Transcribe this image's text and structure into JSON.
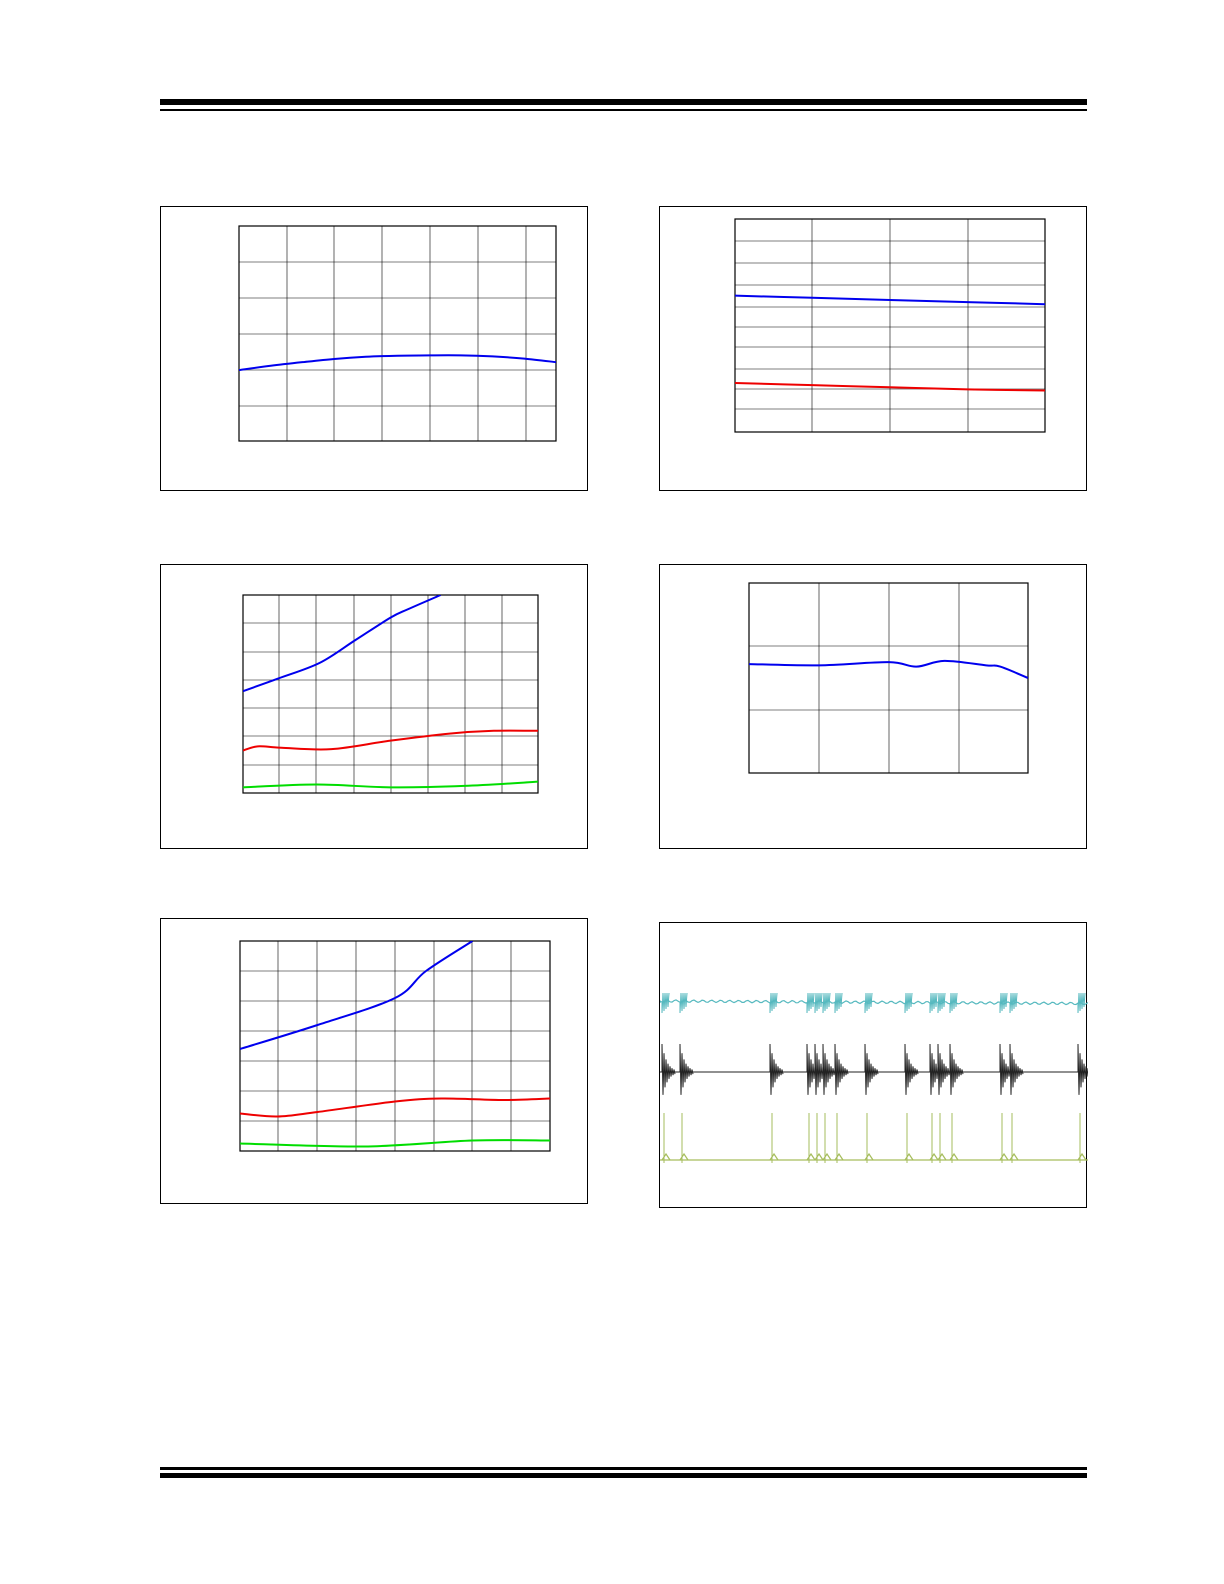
{
  "page": {
    "colors": {
      "blue": "#0000ee",
      "red": "#ee0000",
      "green": "#00dd00",
      "cyan": "#56b9bf",
      "black": "#222222",
      "olive": "#a6bd5c",
      "grid": "#000000"
    }
  },
  "chart_data": [
    {
      "type": "line",
      "title": "",
      "xlabel": "",
      "ylabel": "",
      "xlim": [
        0,
        100
      ],
      "ylim": [
        0,
        6
      ],
      "grid": true,
      "series": [
        {
          "color": "#0000ee",
          "x": [
            0,
            10,
            20,
            30,
            40,
            50,
            60,
            70,
            80,
            90,
            100
          ],
          "y": [
            1.98,
            2.1,
            2.2,
            2.29,
            2.35,
            2.38,
            2.39,
            2.39,
            2.36,
            2.3,
            2.2
          ]
        }
      ]
    },
    {
      "type": "line",
      "title": "",
      "xlabel": "",
      "ylabel": "",
      "xlim": [
        0,
        100
      ],
      "ylim": [
        0,
        10
      ],
      "grid": true,
      "series": [
        {
          "color": "#0000ee",
          "x": [
            0,
            25,
            50,
            75,
            100
          ],
          "y": [
            6.4,
            6.3,
            6.2,
            6.1,
            6.0
          ]
        },
        {
          "color": "#ee0000",
          "x": [
            0,
            25,
            50,
            75,
            100
          ],
          "y": [
            2.3,
            2.2,
            2.1,
            2.0,
            1.95
          ]
        }
      ]
    },
    {
      "type": "line",
      "title": "",
      "xlabel": "",
      "ylabel": "",
      "xlim": [
        0,
        100
      ],
      "ylim": [
        0,
        7
      ],
      "grid": true,
      "series": [
        {
          "color": "#0000ee",
          "x": [
            0,
            12,
            26,
            38,
            50,
            56,
            67
          ],
          "y": [
            3.6,
            4.05,
            4.6,
            5.4,
            6.2,
            6.5,
            7.0
          ]
        },
        {
          "color": "#ee0000",
          "x": [
            0,
            5,
            13,
            30,
            50,
            70,
            85,
            100
          ],
          "y": [
            1.5,
            1.65,
            1.6,
            1.55,
            1.85,
            2.1,
            2.2,
            2.2
          ]
        },
        {
          "color": "#00dd00",
          "x": [
            0,
            25,
            50,
            75,
            100
          ],
          "y": [
            0.2,
            0.3,
            0.2,
            0.25,
            0.4
          ]
        }
      ]
    },
    {
      "type": "line",
      "title": "",
      "xlabel": "",
      "ylabel": "",
      "xlim": [
        0,
        100
      ],
      "ylim": [
        0,
        3
      ],
      "grid": true,
      "series": [
        {
          "color": "#0000ee",
          "x": [
            0,
            25,
            50,
            60,
            70,
            85,
            90,
            100
          ],
          "y": [
            1.72,
            1.7,
            1.75,
            1.68,
            1.77,
            1.7,
            1.68,
            1.5
          ]
        }
      ]
    },
    {
      "type": "line",
      "title": "",
      "xlabel": "",
      "ylabel": "",
      "xlim": [
        0,
        100
      ],
      "ylim": [
        0,
        7
      ],
      "grid": true,
      "series": [
        {
          "color": "#0000ee",
          "x": [
            0,
            25,
            50,
            60,
            75
          ],
          "y": [
            3.4,
            4.2,
            5.1,
            6.0,
            7.0
          ]
        },
        {
          "color": "#ee0000",
          "x": [
            0,
            12,
            25,
            50,
            65,
            85,
            100
          ],
          "y": [
            1.25,
            1.15,
            1.3,
            1.65,
            1.75,
            1.7,
            1.75
          ]
        },
        {
          "color": "#00dd00",
          "x": [
            0,
            40,
            75,
            100
          ],
          "y": [
            0.25,
            0.15,
            0.35,
            0.35
          ]
        }
      ]
    }
  ]
}
